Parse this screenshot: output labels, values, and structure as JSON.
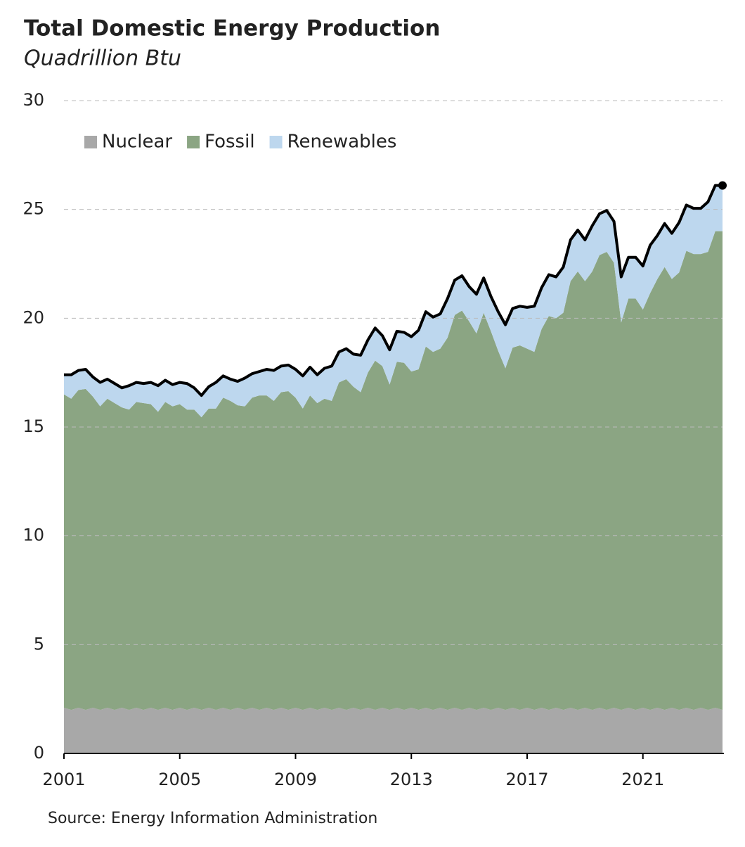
{
  "chart_data": {
    "type": "stacked_area",
    "title": "Total Domestic Energy Production",
    "subtitle": "Quadrillion Btu",
    "source": "Source: Energy Information Administration",
    "x": [
      2001,
      2001.25,
      2001.5,
      2001.75,
      2002,
      2002.25,
      2002.5,
      2002.75,
      2003,
      2003.25,
      2003.5,
      2003.75,
      2004,
      2004.25,
      2004.5,
      2004.75,
      2005,
      2005.25,
      2005.5,
      2005.75,
      2006,
      2006.25,
      2006.5,
      2006.75,
      2007,
      2007.25,
      2007.5,
      2007.75,
      2008,
      2008.25,
      2008.5,
      2008.75,
      2009,
      2009.25,
      2009.5,
      2009.75,
      2010,
      2010.25,
      2010.5,
      2010.75,
      2011,
      2011.25,
      2011.5,
      2011.75,
      2012,
      2012.25,
      2012.5,
      2012.75,
      2013,
      2013.25,
      2013.5,
      2013.75,
      2014,
      2014.25,
      2014.5,
      2014.75,
      2015,
      2015.25,
      2015.5,
      2015.75,
      2016,
      2016.25,
      2016.5,
      2016.75,
      2017,
      2017.25,
      2017.5,
      2017.75,
      2018,
      2018.25,
      2018.5,
      2018.75,
      2019,
      2019.25,
      2019.5,
      2019.75,
      2020,
      2020.25,
      2020.5,
      2020.75,
      2021,
      2021.25,
      2021.5,
      2021.75,
      2022,
      2022.25,
      2022.5,
      2022.75,
      2023,
      2023.25,
      2023.5,
      2023.75
    ],
    "series": [
      {
        "name": "Nuclear",
        "color": "#a8a8a8",
        "values": [
          2.1,
          2.0,
          2.1,
          2.0,
          2.1,
          2.0,
          2.1,
          2.0,
          2.1,
          2.0,
          2.1,
          2.0,
          2.1,
          2.0,
          2.1,
          2.0,
          2.1,
          2.0,
          2.1,
          2.0,
          2.1,
          2.0,
          2.1,
          2.0,
          2.1,
          2.0,
          2.1,
          2.0,
          2.1,
          2.0,
          2.1,
          2.0,
          2.1,
          2.0,
          2.1,
          2.0,
          2.1,
          2.0,
          2.1,
          2.0,
          2.1,
          2.0,
          2.1,
          2.0,
          2.1,
          2.0,
          2.1,
          2.0,
          2.1,
          2.0,
          2.1,
          2.0,
          2.1,
          2.0,
          2.1,
          2.0,
          2.1,
          2.0,
          2.1,
          2.0,
          2.1,
          2.0,
          2.1,
          2.0,
          2.1,
          2.0,
          2.1,
          2.0,
          2.1,
          2.0,
          2.1,
          2.0,
          2.1,
          2.0,
          2.1,
          2.0,
          2.1,
          2.0,
          2.1,
          2.0,
          2.1,
          2.0,
          2.1,
          2.0,
          2.1,
          2.0,
          2.1,
          2.0,
          2.1,
          2.0,
          2.1,
          2.0
        ]
      },
      {
        "name": "Fossil",
        "color": "#8ba583",
        "values": [
          14.4,
          14.3,
          14.6,
          14.75,
          14.3,
          13.95,
          14.2,
          14.1,
          13.8,
          13.8,
          14.05,
          14.1,
          13.95,
          13.7,
          14.05,
          13.95,
          13.95,
          13.8,
          13.7,
          13.45,
          13.75,
          13.85,
          14.25,
          14.2,
          13.9,
          13.95,
          14.25,
          14.45,
          14.35,
          14.2,
          14.5,
          14.65,
          14.25,
          13.85,
          14.35,
          14.1,
          14.2,
          14.2,
          14.95,
          15.2,
          14.75,
          14.6,
          15.4,
          16.05,
          15.7,
          14.95,
          15.9,
          15.95,
          15.45,
          15.65,
          16.6,
          16.45,
          16.5,
          17.1,
          18.05,
          18.35,
          17.75,
          17.3,
          18.15,
          17.4,
          16.4,
          15.7,
          16.55,
          16.75,
          16.5,
          16.45,
          17.4,
          18.1,
          17.9,
          18.25,
          19.6,
          20.15,
          19.6,
          20.15,
          20.8,
          21.05,
          20.45,
          17.8,
          18.8,
          18.9,
          18.3,
          19.15,
          19.7,
          20.35,
          19.7,
          20.1,
          21.0,
          20.95,
          20.85,
          21.05,
          21.9,
          22.0
        ]
      },
      {
        "name": "Renewables",
        "color": "#bdd7ee",
        "values": [
          0.9,
          1.1,
          0.9,
          0.9,
          0.9,
          1.1,
          0.9,
          0.9,
          0.9,
          1.1,
          0.9,
          0.9,
          1.0,
          1.2,
          1.0,
          1.0,
          1.0,
          1.2,
          1.0,
          1.0,
          1.0,
          1.2,
          1.0,
          1.0,
          1.1,
          1.3,
          1.1,
          1.1,
          1.2,
          1.4,
          1.2,
          1.2,
          1.3,
          1.5,
          1.3,
          1.3,
          1.4,
          1.6,
          1.4,
          1.4,
          1.5,
          1.7,
          1.5,
          1.5,
          1.4,
          1.6,
          1.4,
          1.4,
          1.6,
          1.8,
          1.6,
          1.6,
          1.6,
          1.8,
          1.6,
          1.6,
          1.6,
          1.8,
          1.6,
          1.6,
          1.8,
          2.0,
          1.8,
          1.8,
          1.9,
          2.1,
          1.9,
          1.9,
          1.9,
          2.1,
          1.9,
          1.9,
          1.9,
          2.1,
          1.9,
          1.9,
          1.9,
          2.1,
          1.9,
          1.9,
          2.0,
          2.2,
          2.0,
          2.0,
          2.1,
          2.3,
          2.1,
          2.1,
          2.1,
          2.3,
          2.1,
          2.1
        ]
      }
    ],
    "xlim": [
      2001,
      2023.75
    ],
    "xticks": [
      2001,
      2005,
      2009,
      2013,
      2017,
      2021
    ],
    "ylim": [
      0,
      30
    ],
    "yticks": [
      0,
      5,
      10,
      15,
      20,
      25,
      30
    ],
    "grid": true,
    "legend": "top-left",
    "total_line_color": "#000000"
  }
}
